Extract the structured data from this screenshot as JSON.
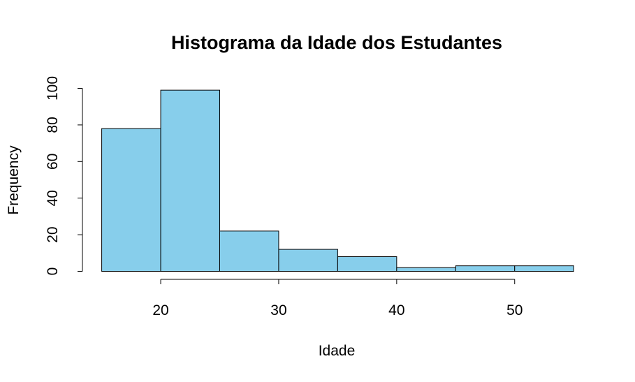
{
  "chart_data": {
    "type": "bar",
    "title": "Histograma da Idade dos Estudantes",
    "xlabel": "Idade",
    "ylabel": "Frequency",
    "bins": [
      {
        "start": 15,
        "end": 20,
        "count": 78
      },
      {
        "start": 20,
        "end": 25,
        "count": 99
      },
      {
        "start": 25,
        "end": 30,
        "count": 22
      },
      {
        "start": 30,
        "end": 35,
        "count": 12
      },
      {
        "start": 35,
        "end": 40,
        "count": 8
      },
      {
        "start": 40,
        "end": 45,
        "count": 2
      },
      {
        "start": 45,
        "end": 50,
        "count": 3
      },
      {
        "start": 50,
        "end": 55,
        "count": 3
      }
    ],
    "xlim": [
      15,
      55
    ],
    "ylim": [
      0,
      100
    ],
    "x_ticks": [
      20,
      30,
      40,
      50
    ],
    "y_ticks": [
      0,
      20,
      40,
      60,
      80,
      100
    ],
    "bar_color": "#87CEEB",
    "grid": false
  }
}
